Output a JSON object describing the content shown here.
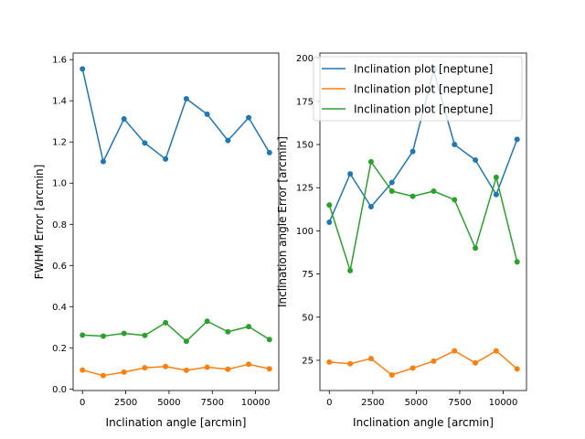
{
  "chart_data": [
    {
      "type": "line",
      "xlabel": "Inclination angle [arcmin]",
      "ylabel": "FWHM Error [arcmin]",
      "xlim": [
        -540,
        11340
      ],
      "ylim": [
        -0.0075,
        1.632
      ],
      "xticks": [
        0,
        2500,
        5000,
        7500,
        10000
      ],
      "xtick_labels": [
        "0",
        "2500",
        "5000",
        "7500",
        "10000"
      ],
      "yticks": [
        0.0,
        0.2,
        0.4,
        0.6,
        0.8,
        1.0,
        1.2,
        1.4,
        1.6
      ],
      "ytick_labels": [
        "0.0",
        "0.2",
        "0.4",
        "0.6",
        "0.8",
        "1.0",
        "1.2",
        "1.4",
        "1.6"
      ],
      "x": [
        0,
        1200,
        2400,
        3600,
        4800,
        6000,
        7200,
        8400,
        9600,
        10800
      ],
      "series": [
        {
          "color": "#1f77b4",
          "values": [
            1.555,
            1.105,
            1.312,
            1.195,
            1.117,
            1.41,
            1.335,
            1.207,
            1.318,
            1.148
          ]
        },
        {
          "color": "#ff7f0e",
          "values": [
            0.092,
            0.065,
            0.082,
            0.103,
            0.109,
            0.091,
            0.106,
            0.096,
            0.12,
            0.098
          ]
        },
        {
          "color": "#2ca02c",
          "values": [
            0.262,
            0.257,
            0.27,
            0.26,
            0.322,
            0.232,
            0.329,
            0.278,
            0.303,
            0.24
          ]
        }
      ],
      "grid": false,
      "markers": true
    },
    {
      "type": "line",
      "xlabel": "Inclination angle [arcmin]",
      "ylabel": "Inclination angle Error [arcmin]",
      "xlim": [
        -540,
        11340
      ],
      "ylim": [
        7.5,
        203.0
      ],
      "xticks": [
        0,
        2500,
        5000,
        7500,
        10000
      ],
      "xtick_labels": [
        "0",
        "2500",
        "5000",
        "7500",
        "10000"
      ],
      "yticks": [
        25,
        50,
        75,
        100,
        125,
        150,
        175,
        200
      ],
      "ytick_labels": [
        "25",
        "50",
        "75",
        "100",
        "125",
        "150",
        "175",
        "200"
      ],
      "x": [
        0,
        1200,
        2400,
        3600,
        4800,
        6000,
        7200,
        8400,
        9600,
        10800
      ],
      "series": [
        {
          "name": "Inclination plot [neptune]",
          "color": "#1f77b4",
          "values": [
            105,
            133,
            114,
            128,
            146,
            193,
            150,
            141,
            121,
            153
          ]
        },
        {
          "name": "Inclination plot [neptune]",
          "color": "#ff7f0e",
          "values": [
            24,
            23,
            26,
            16.5,
            20.5,
            24.5,
            30.5,
            23.5,
            30.5,
            20
          ]
        },
        {
          "name": "Inclination plot [neptune]",
          "color": "#2ca02c",
          "values": [
            115,
            77,
            140,
            123,
            120,
            123,
            118,
            90,
            131,
            82
          ]
        }
      ],
      "legend": "top-right",
      "grid": false,
      "markers": true
    }
  ]
}
